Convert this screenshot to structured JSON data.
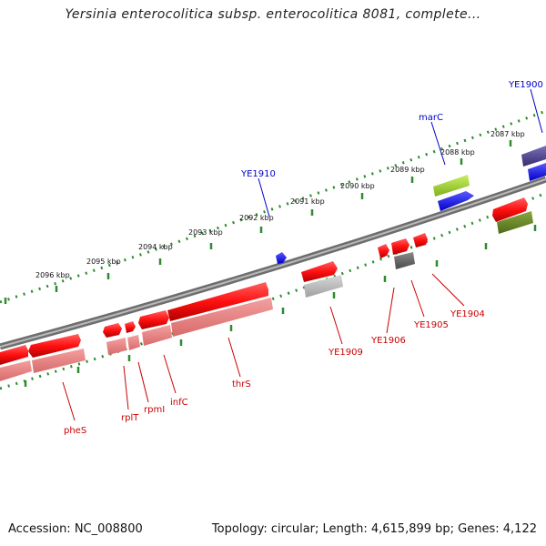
{
  "title": "Yersinia enterocolitica subsp. enterocolitica 8081, complete...",
  "footer": {
    "accession": "Accession: NC_008800",
    "summary": "Topology: circular; Length: 4,615,899 bp; Genes: 4,122"
  },
  "colors": {
    "backbone": "#808080",
    "tick": "#2e8b2e",
    "red_gene": "#ff1a1a",
    "pink_gene": "#f08080",
    "blue_gene": "#1a1aff",
    "navy_gene": "#483d8b",
    "lime_gene": "#9acd32",
    "olive_gene": "#6b8e23",
    "gray_gene": "#b0b0b0",
    "dark_gray_gene": "#606060",
    "label_blue": "#0000cc",
    "label_red": "#cc0000"
  },
  "kbp_labels": [
    "2087 kbp",
    "2088 kbp",
    "2089 kbp",
    "2090 kbp",
    "2091 kbp",
    "2092 kbp",
    "2093 kbp",
    "2094 kbp",
    "2095 kbp",
    "2096 kbp"
  ],
  "gene_labels": {
    "YE1900": "YE1900",
    "marC": "marC",
    "YE1910": "YE1910",
    "YE1904": "YE1904",
    "YE1905": "YE1905",
    "YE1906": "YE1906",
    "YE1909": "YE1909",
    "thrS": "thrS",
    "infC": "infC",
    "rpmI": "rpmI",
    "rplT": "rplT",
    "pheS": "pheS"
  }
}
